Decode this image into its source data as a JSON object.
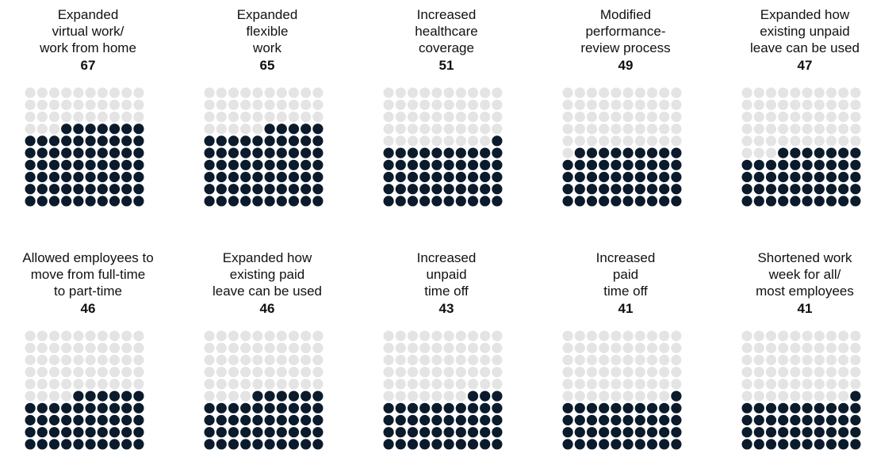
{
  "chart_data": {
    "type": "waffle",
    "unit": "dots per 100",
    "colors": {
      "filled": "#0b1b2b",
      "empty": "#e4e4e4"
    },
    "panels": [
      {
        "label": "Expanded\nvirtual work/\nwork from home",
        "value": 67
      },
      {
        "label": "Expanded\nflexible\nwork",
        "value": 65
      },
      {
        "label": "Increased\nhealthcare\ncoverage",
        "value": 51
      },
      {
        "label": "Modified\nperformance-\nreview process",
        "value": 49
      },
      {
        "label": "Expanded how\nexisting unpaid\nleave can be used",
        "value": 47
      },
      {
        "label": "Allowed employees to\nmove from full-time\nto part-time",
        "value": 46
      },
      {
        "label": "Expanded how\nexisting paid\nleave can be used",
        "value": 46
      },
      {
        "label": "Increased\nunpaid\ntime off",
        "value": 43
      },
      {
        "label": "Increased\npaid\ntime off",
        "value": 41
      },
      {
        "label": "Shortened work\nweek for all/\nmost employees",
        "value": 41
      }
    ]
  }
}
